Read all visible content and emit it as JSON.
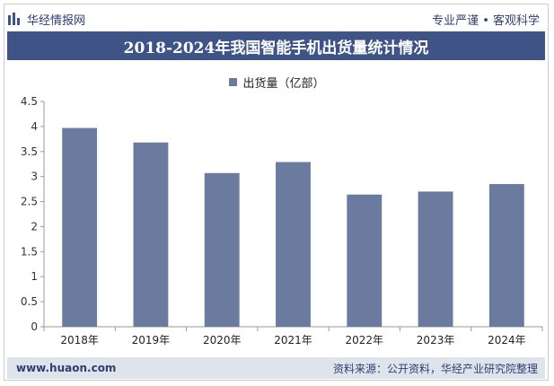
{
  "header": {
    "brand": "华经情报网",
    "tagline": "专业严谨 • 客观科学",
    "title": "2018-2024年我国智能手机出货量统计情况"
  },
  "legend": {
    "label": "出货量（亿部）"
  },
  "chart_data": {
    "type": "bar",
    "categories": [
      "2018年",
      "2019年",
      "2020年",
      "2021年",
      "2022年",
      "2023年",
      "2024年"
    ],
    "series": [
      {
        "name": "出货量（亿部）",
        "values": [
          3.97,
          3.68,
          3.07,
          3.29,
          2.64,
          2.7,
          2.85
        ],
        "color": "#6b7ba0"
      }
    ],
    "ylim": [
      0,
      4.5
    ],
    "yticks": [
      "0",
      "0.5",
      "1",
      "1.5",
      "2",
      "2.5",
      "3",
      "3.5",
      "4",
      "4.5"
    ],
    "grid": false,
    "legend_position": "top"
  },
  "footer": {
    "website": "www.huaon.com",
    "source": "资料来源：公开资料，华经产业研究院整理"
  },
  "watermark": {
    "text": "华经产业研究院",
    "url": "www.huaon.com"
  }
}
